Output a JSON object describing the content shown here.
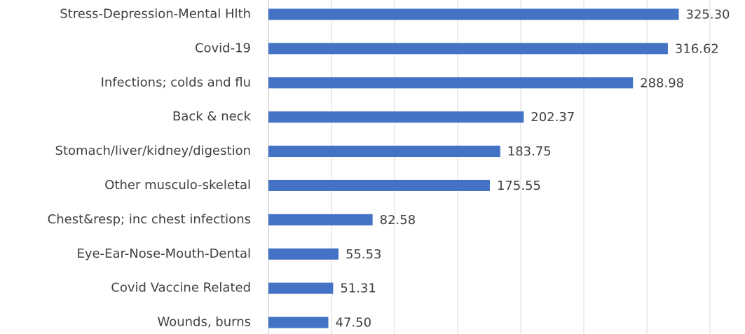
{
  "chart_data": {
    "type": "bar",
    "orientation": "horizontal",
    "categories": [
      "Stress-Depression-Mental Hlth",
      "Covid-19",
      "Infections; colds and flu",
      "Back & neck",
      "Stomach/liver/kidney/digestion",
      "Other musculo-skeletal",
      "Chest&resp; inc chest infections",
      "Eye-Ear-Nose-Mouth-Dental",
      "Covid Vaccine Related",
      "Wounds, burns"
    ],
    "values": [
      325.3,
      316.62,
      288.98,
      202.37,
      183.75,
      175.55,
      82.58,
      55.53,
      51.31,
      47.5
    ],
    "value_labels": [
      "325.30",
      "316.62",
      "288.98",
      "202.37",
      "183.75",
      "175.55",
      "82.58",
      "55.53",
      "51.31",
      "47.50"
    ],
    "color": "#4472c4",
    "xlim": [
      0,
      350
    ],
    "xticks": [
      0,
      50,
      100,
      150,
      200,
      250,
      300,
      350
    ],
    "grid": true
  }
}
